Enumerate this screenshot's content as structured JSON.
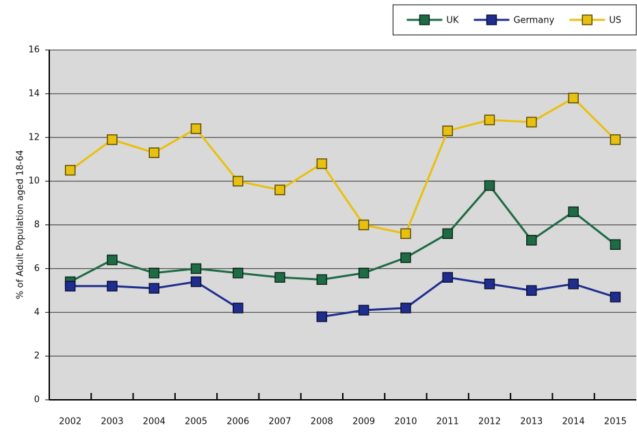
{
  "chart_data": {
    "type": "line",
    "y_label": "% of Adult Population aged 18-64",
    "categories": [
      "2002",
      "2003",
      "2004",
      "2005",
      "2006",
      "2007",
      "2008",
      "2009",
      "2010",
      "2011",
      "2012",
      "2013",
      "2014",
      "2015"
    ],
    "series": [
      {
        "name": "UK",
        "color": "#1e6b45",
        "values": [
          5.4,
          6.4,
          5.8,
          6.0,
          5.8,
          5.6,
          5.5,
          5.8,
          6.5,
          7.6,
          9.8,
          7.3,
          8.6,
          7.1
        ]
      },
      {
        "name": "Germany",
        "color": "#1f2d8f",
        "values": [
          5.2,
          5.2,
          5.1,
          5.4,
          4.2,
          null,
          3.8,
          4.1,
          4.2,
          5.6,
          5.3,
          5.0,
          5.3,
          4.7
        ]
      },
      {
        "name": "US",
        "color": "#e8c010",
        "values": [
          10.5,
          11.9,
          11.3,
          12.4,
          10.0,
          9.6,
          10.8,
          8.0,
          7.6,
          12.3,
          12.8,
          12.7,
          13.8,
          11.9
        ]
      }
    ],
    "ylim": [
      0,
      16
    ],
    "yticks": [
      0,
      2,
      4,
      6,
      8,
      10,
      12,
      14,
      16
    ],
    "grid": true,
    "legend": "top-right"
  }
}
